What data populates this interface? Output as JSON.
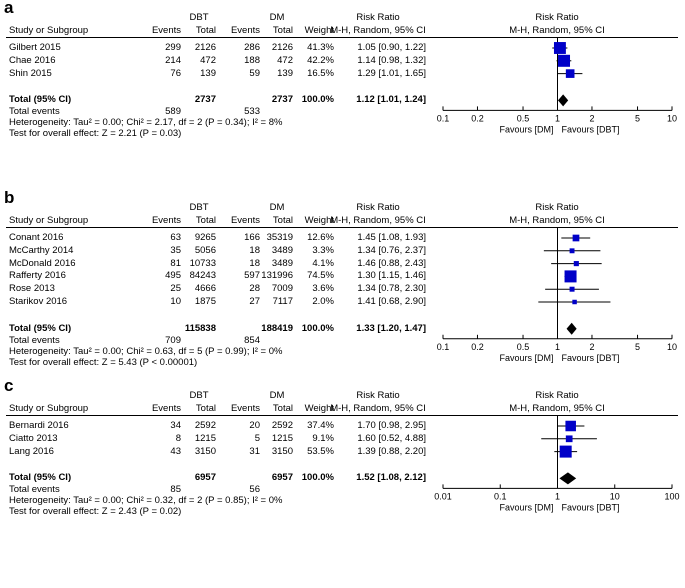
{
  "headers": {
    "group_exp": "DBT",
    "group_ctrl": "DM",
    "study": "Study or Subgroup",
    "events": "Events",
    "total": "Total",
    "weight": "Weight",
    "rr_title": "Risk Ratio",
    "rr_method": "M-H, Random, 95% CI",
    "favours_left": "Favours [DM]",
    "favours_right": "Favours [DBT]",
    "total_row_label": "Total (95% CI)",
    "total_events_label": "Total events"
  },
  "chart_data": [
    {
      "type": "forest",
      "panel": "a",
      "scale": "log",
      "xlim": [
        0.1,
        10
      ],
      "ticks": [
        0.1,
        0.2,
        0.5,
        1,
        2,
        5,
        10
      ],
      "tick_labels": [
        "0.1",
        "0.2",
        "0.5",
        "1",
        "2",
        "5",
        "10"
      ],
      "studies": [
        {
          "name": "Gilbert 2015",
          "exp_events": "299",
          "exp_total": "2126",
          "ctrl_events": "286",
          "ctrl_total": "2126",
          "weight": "41.3%",
          "rr_text": "1.05 [0.90, 1.22]",
          "rr": 1.05,
          "lo": 0.9,
          "hi": 1.22,
          "w": 41.3
        },
        {
          "name": "Chae 2016",
          "exp_events": "214",
          "exp_total": "472",
          "ctrl_events": "188",
          "ctrl_total": "472",
          "weight": "42.2%",
          "rr_text": "1.14 [0.98, 1.32]",
          "rr": 1.14,
          "lo": 0.98,
          "hi": 1.32,
          "w": 42.2
        },
        {
          "name": "Shin 2015",
          "exp_events": "76",
          "exp_total": "139",
          "ctrl_events": "59",
          "ctrl_total": "139",
          "weight": "16.5%",
          "rr_text": "1.29 [1.01, 1.65]",
          "rr": 1.29,
          "lo": 1.01,
          "hi": 1.65,
          "w": 16.5
        }
      ],
      "total": {
        "exp_total": "2737",
        "ctrl_total": "2737",
        "weight": "100.0%",
        "rr_text": "1.12 [1.01, 1.24]",
        "rr": 1.12,
        "lo": 1.01,
        "hi": 1.24
      },
      "total_events": {
        "exp": "589",
        "ctrl": "533"
      },
      "heterogeneity": "Heterogeneity: Tau² = 0.00; Chi² = 2.17, df = 2 (P = 0.34); I² = 8%",
      "overall_effect": "Test for overall effect: Z = 2.21 (P = 0.03)"
    },
    {
      "type": "forest",
      "panel": "b",
      "scale": "log",
      "xlim": [
        0.1,
        10
      ],
      "ticks": [
        0.1,
        0.2,
        0.5,
        1,
        2,
        5,
        10
      ],
      "tick_labels": [
        "0.1",
        "0.2",
        "0.5",
        "1",
        "2",
        "5",
        "10"
      ],
      "studies": [
        {
          "name": "Conant 2016",
          "exp_events": "63",
          "exp_total": "9265",
          "ctrl_events": "166",
          "ctrl_total": "35319",
          "weight": "12.6%",
          "rr_text": "1.45 [1.08, 1.93]",
          "rr": 1.45,
          "lo": 1.08,
          "hi": 1.93,
          "w": 12.6
        },
        {
          "name": "McCarthy 2014",
          "exp_events": "35",
          "exp_total": "5056",
          "ctrl_events": "18",
          "ctrl_total": "3489",
          "weight": "3.3%",
          "rr_text": "1.34 [0.76, 2.37]",
          "rr": 1.34,
          "lo": 0.76,
          "hi": 2.37,
          "w": 3.3
        },
        {
          "name": "McDonald 2016",
          "exp_events": "81",
          "exp_total": "10733",
          "ctrl_events": "18",
          "ctrl_total": "3489",
          "weight": "4.1%",
          "rr_text": "1.46 [0.88, 2.43]",
          "rr": 1.46,
          "lo": 0.88,
          "hi": 2.43,
          "w": 4.1
        },
        {
          "name": "Rafferty 2016",
          "exp_events": "495",
          "exp_total": "84243",
          "ctrl_events": "597",
          "ctrl_total": "131996",
          "weight": "74.5%",
          "rr_text": "1.30 [1.15, 1.46]",
          "rr": 1.3,
          "lo": 1.15,
          "hi": 1.46,
          "w": 74.5
        },
        {
          "name": "Rose 2013",
          "exp_events": "25",
          "exp_total": "4666",
          "ctrl_events": "28",
          "ctrl_total": "7009",
          "weight": "3.6%",
          "rr_text": "1.34 [0.78, 2.30]",
          "rr": 1.34,
          "lo": 0.78,
          "hi": 2.3,
          "w": 3.6
        },
        {
          "name": "Starikov 2016",
          "exp_events": "10",
          "exp_total": "1875",
          "ctrl_events": "27",
          "ctrl_total": "7117",
          "weight": "2.0%",
          "rr_text": "1.41 [0.68, 2.90]",
          "rr": 1.41,
          "lo": 0.68,
          "hi": 2.9,
          "w": 2.0
        }
      ],
      "total": {
        "exp_total": "115838",
        "ctrl_total": "188419",
        "weight": "100.0%",
        "rr_text": "1.33 [1.20, 1.47]",
        "rr": 1.33,
        "lo": 1.2,
        "hi": 1.47
      },
      "total_events": {
        "exp": "709",
        "ctrl": "854"
      },
      "heterogeneity": "Heterogeneity: Tau² = 0.00; Chi² = 0.63, df = 5 (P = 0.99); I² = 0%",
      "overall_effect": "Test for overall effect: Z = 5.43 (P < 0.00001)"
    },
    {
      "type": "forest",
      "panel": "c",
      "scale": "log",
      "xlim": [
        0.01,
        100
      ],
      "ticks": [
        0.01,
        0.1,
        1,
        10,
        100
      ],
      "tick_labels": [
        "0.01",
        "0.1",
        "1",
        "10",
        "100"
      ],
      "studies": [
        {
          "name": "Bernardi 2016",
          "exp_events": "34",
          "exp_total": "2592",
          "ctrl_events": "20",
          "ctrl_total": "2592",
          "weight": "37.4%",
          "rr_text": "1.70 [0.98, 2.95]",
          "rr": 1.7,
          "lo": 0.98,
          "hi": 2.95,
          "w": 37.4
        },
        {
          "name": "Ciatto 2013",
          "exp_events": "8",
          "exp_total": "1215",
          "ctrl_events": "5",
          "ctrl_total": "1215",
          "weight": "9.1%",
          "rr_text": "1.60 [0.52, 4.88]",
          "rr": 1.6,
          "lo": 0.52,
          "hi": 4.88,
          "w": 9.1
        },
        {
          "name": "Lang 2016",
          "exp_events": "43",
          "exp_total": "3150",
          "ctrl_events": "31",
          "ctrl_total": "3150",
          "weight": "53.5%",
          "rr_text": "1.39 [0.88, 2.20]",
          "rr": 1.39,
          "lo": 0.88,
          "hi": 2.2,
          "w": 53.5
        }
      ],
      "total": {
        "exp_total": "6957",
        "ctrl_total": "6957",
        "weight": "100.0%",
        "rr_text": "1.52 [1.08, 2.12]",
        "rr": 1.52,
        "lo": 1.08,
        "hi": 2.12
      },
      "total_events": {
        "exp": "85",
        "ctrl": "56"
      },
      "heterogeneity": "Heterogeneity: Tau² = 0.00; Chi² = 0.32, df = 2 (P = 0.85); I² = 0%",
      "overall_effect": "Test for overall effect: Z = 2.43 (P = 0.02)"
    }
  ]
}
